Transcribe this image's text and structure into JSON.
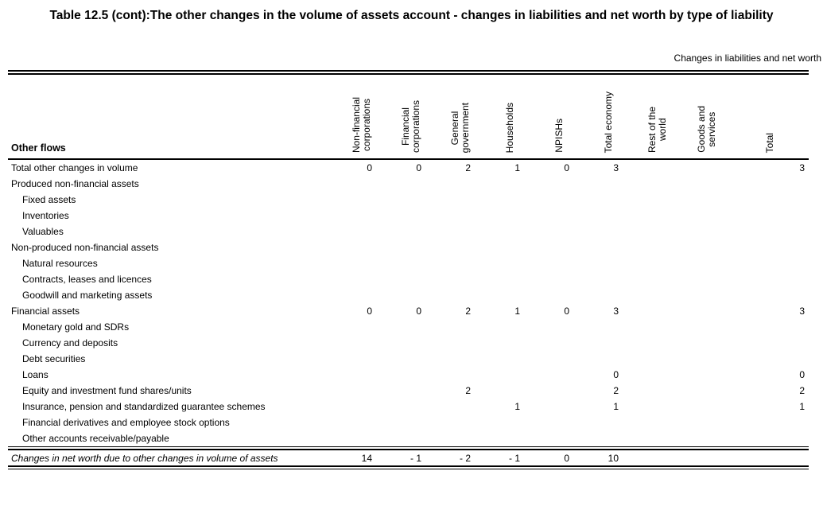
{
  "page": {
    "title": "Table 12.5 (cont):The other changes in the volume of assets account - changes in liabilities and net worth by type of liability",
    "header_note": "Changes in liabilities and net worth"
  },
  "table": {
    "corner_label": "Other flows",
    "columns": [
      "Non-financial\ncorporations",
      "Financial\ncorporations",
      "General\ngovernment",
      "Households",
      "NPISHs",
      "Total economy",
      "Rest of the\nworld",
      "Goods and\nservices",
      "Total"
    ],
    "rows": [
      {
        "label": "Total other changes in volume",
        "indent": 0,
        "values": [
          "0",
          "0",
          "2",
          "1",
          "0",
          "3",
          "",
          "",
          "3"
        ]
      },
      {
        "label": "Produced non-financial assets",
        "indent": 0,
        "values": [
          "",
          "",
          "",
          "",
          "",
          "",
          "",
          "",
          ""
        ]
      },
      {
        "label": "Fixed assets",
        "indent": 1,
        "values": [
          "",
          "",
          "",
          "",
          "",
          "",
          "",
          "",
          ""
        ]
      },
      {
        "label": "Inventories",
        "indent": 1,
        "values": [
          "",
          "",
          "",
          "",
          "",
          "",
          "",
          "",
          ""
        ]
      },
      {
        "label": "Valuables",
        "indent": 1,
        "values": [
          "",
          "",
          "",
          "",
          "",
          "",
          "",
          "",
          ""
        ]
      },
      {
        "label": "Non-produced non-financial assets",
        "indent": 0,
        "values": [
          "",
          "",
          "",
          "",
          "",
          "",
          "",
          "",
          ""
        ]
      },
      {
        "label": "Natural resources",
        "indent": 1,
        "values": [
          "",
          "",
          "",
          "",
          "",
          "",
          "",
          "",
          ""
        ]
      },
      {
        "label": "Contracts, leases and licences",
        "indent": 1,
        "values": [
          "",
          "",
          "",
          "",
          "",
          "",
          "",
          "",
          ""
        ]
      },
      {
        "label": "Goodwill and marketing assets",
        "indent": 1,
        "values": [
          "",
          "",
          "",
          "",
          "",
          "",
          "",
          "",
          ""
        ]
      },
      {
        "label": "Financial assets",
        "indent": 0,
        "values": [
          "0",
          "0",
          "2",
          "1",
          "0",
          "3",
          "",
          "",
          "3"
        ]
      },
      {
        "label": "Monetary gold and SDRs",
        "indent": 1,
        "values": [
          "",
          "",
          "",
          "",
          "",
          "",
          "",
          "",
          ""
        ]
      },
      {
        "label": "Currency and deposits",
        "indent": 1,
        "values": [
          "",
          "",
          "",
          "",
          "",
          "",
          "",
          "",
          ""
        ]
      },
      {
        "label": "Debt securities",
        "indent": 1,
        "values": [
          "",
          "",
          "",
          "",
          "",
          "",
          "",
          "",
          ""
        ]
      },
      {
        "label": "Loans",
        "indent": 1,
        "values": [
          "",
          "",
          "",
          "",
          "",
          "0",
          "",
          "",
          "0"
        ]
      },
      {
        "label": "Equity and investment fund shares/units",
        "indent": 1,
        "values": [
          "",
          "",
          "2",
          "",
          "",
          "2",
          "",
          "",
          "2"
        ]
      },
      {
        "label": "Insurance, pension and standardized guarantee schemes",
        "indent": 1,
        "values": [
          "",
          "",
          "",
          "1",
          "",
          "1",
          "",
          "",
          "1"
        ]
      },
      {
        "label": "Financial derivatives and employee stock options",
        "indent": 1,
        "values": [
          "",
          "",
          "",
          "",
          "",
          "",
          "",
          "",
          ""
        ]
      },
      {
        "label": "Other accounts receivable/payable",
        "indent": 1,
        "values": [
          "",
          "",
          "",
          "",
          "",
          "",
          "",
          "",
          ""
        ]
      }
    ],
    "footer": {
      "label": "Changes in net worth due to other changes in volume of assets",
      "values": [
        "14",
        "- 1",
        "- 2",
        "- 1",
        "0",
        "10",
        "",
        "",
        ""
      ]
    }
  },
  "colors": {
    "text": "#000000",
    "rule": "#000000",
    "background": "#ffffff"
  }
}
